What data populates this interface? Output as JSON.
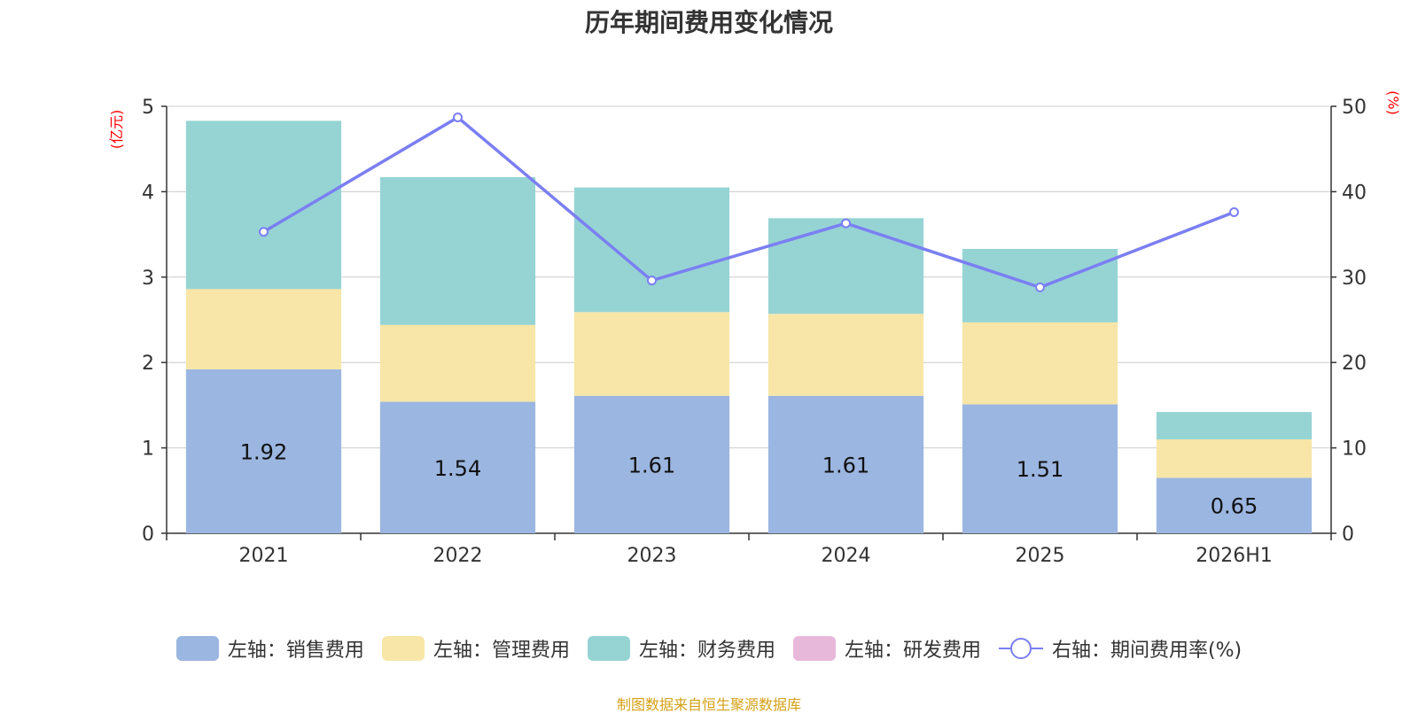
{
  "chart_data": {
    "type": "bar",
    "title": "历年期间费用变化情况",
    "left_unit": "(亿元)",
    "right_unit": "(%)",
    "categories": [
      "2021",
      "2022",
      "2023",
      "2024",
      "2025",
      "2026H1"
    ],
    "left_axis": {
      "min": 0,
      "max": 5,
      "ticks": [
        0,
        1,
        2,
        3,
        4,
        5
      ]
    },
    "right_axis": {
      "min": 0,
      "max": 50,
      "ticks": [
        0,
        10,
        20,
        30,
        40,
        50
      ]
    },
    "series": [
      {
        "name": "左轴：销售费用",
        "kind": "bar",
        "axis": "left",
        "color": "#9bb6e0",
        "values": [
          1.92,
          1.54,
          1.61,
          1.61,
          1.51,
          0.65
        ],
        "show_labels": true
      },
      {
        "name": "左轴：管理费用",
        "kind": "bar",
        "axis": "left",
        "color": "#f7e6a7",
        "values": [
          0.94,
          0.9,
          0.98,
          0.96,
          0.96,
          0.45
        ]
      },
      {
        "name": "左轴：财务费用",
        "kind": "bar",
        "axis": "left",
        "color": "#96d4d4",
        "values": [
          1.97,
          1.73,
          1.46,
          1.12,
          0.86,
          0.32
        ]
      },
      {
        "name": "左轴：研发费用",
        "kind": "bar",
        "axis": "left",
        "color": "#e8b8da",
        "values": [
          0,
          0,
          0,
          0,
          0,
          0
        ]
      },
      {
        "name": "右轴：期间费用率(%)",
        "kind": "line",
        "axis": "right",
        "color": "#7b7ff2",
        "values": [
          35.3,
          48.7,
          29.6,
          36.3,
          28.8,
          37.6
        ]
      }
    ],
    "grid": true,
    "legend_position": "bottom",
    "source": "制图数据来自恒生聚源数据库"
  }
}
